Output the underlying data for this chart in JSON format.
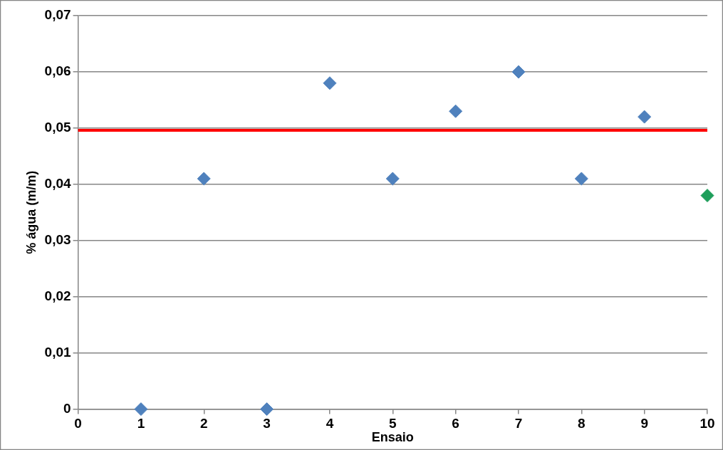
{
  "chart_data": {
    "type": "scatter",
    "xlabel": "Ensaio",
    "ylabel": "% água (m/m)",
    "x": [
      1,
      2,
      3,
      4,
      5,
      6,
      7,
      8,
      9,
      10
    ],
    "values": [
      0,
      0.041,
      0,
      0.058,
      0.041,
      0.053,
      0.06,
      0.041,
      0.052,
      0.038
    ],
    "colors": [
      "#4f81bd",
      "#4f81bd",
      "#4f81bd",
      "#4f81bd",
      "#4f81bd",
      "#4f81bd",
      "#4f81bd",
      "#4f81bd",
      "#4f81bd",
      "#1e9e5a"
    ],
    "marker": "diamond",
    "xlim": [
      0,
      10
    ],
    "xticks": [
      0,
      1,
      2,
      3,
      4,
      5,
      6,
      7,
      8,
      9,
      10
    ],
    "ylim": [
      0,
      0.07
    ],
    "yticks": [
      0,
      {
        "value": 0.01,
        "label": "0,01"
      },
      {
        "value": 0.02,
        "label": "0,02"
      },
      {
        "value": 0.03,
        "label": "0,03"
      },
      {
        "value": 0.04,
        "label": "0,04"
      },
      {
        "value": 0.05,
        "label": "0,05"
      },
      {
        "value": 0.06,
        "label": "0,06"
      },
      {
        "value": 0.07,
        "label": "0,07"
      }
    ],
    "ref_lines": [
      {
        "axis": "y",
        "value": 0.0496,
        "color": "#ff0000"
      }
    ],
    "grid": "y",
    "legend": false
  }
}
